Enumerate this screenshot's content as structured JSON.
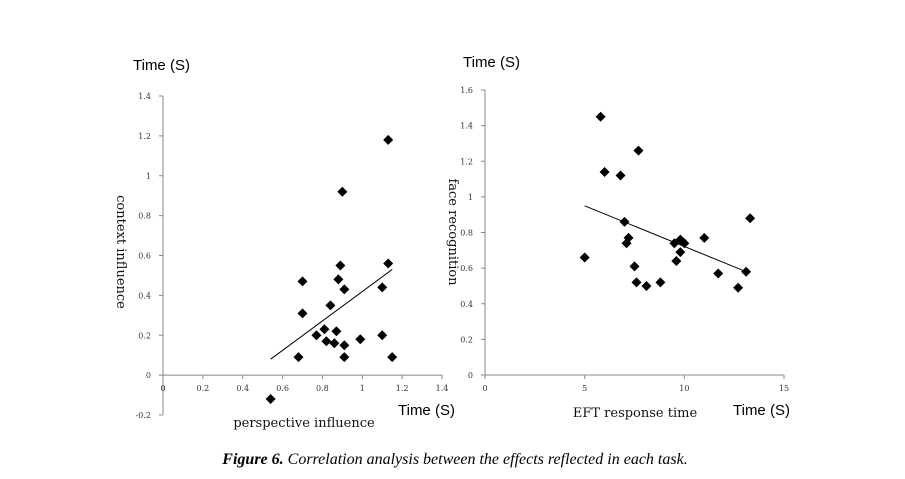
{
  "caption": {
    "bold": "Figure 6.",
    "text": " Correlation analysis between the effects reflected in each task."
  },
  "chart_data": [
    {
      "type": "scatter",
      "title": "",
      "unit_label_y": "Time (S)",
      "unit_label_x": "Time (S)",
      "xlabel": "perspective influence",
      "ylabel": "context influence",
      "xlim": [
        0,
        1.4
      ],
      "ylim": [
        -0.2,
        1.4
      ],
      "xticks": [
        "0",
        "0.2",
        "0.4",
        "0.6",
        "0.8",
        "1",
        "1.2",
        "1.4"
      ],
      "xtick_values": [
        0,
        0.2,
        0.4,
        0.6,
        0.8,
        1,
        1.2,
        1.4
      ],
      "yticks": [
        "-0.2",
        "0",
        "0.2",
        "0.4",
        "0.6",
        "0.8",
        "1",
        "1.2",
        "1.4"
      ],
      "ytick_values": [
        -0.2,
        0,
        0.2,
        0.4,
        0.6,
        0.8,
        1,
        1.2,
        1.4
      ],
      "points": [
        [
          0.54,
          -0.12
        ],
        [
          0.68,
          0.09
        ],
        [
          0.7,
          0.47
        ],
        [
          0.7,
          0.31
        ],
        [
          0.77,
          0.2
        ],
        [
          0.81,
          0.23
        ],
        [
          0.82,
          0.17
        ],
        [
          0.84,
          0.35
        ],
        [
          0.86,
          0.16
        ],
        [
          0.87,
          0.22
        ],
        [
          0.88,
          0.48
        ],
        [
          0.89,
          0.55
        ],
        [
          0.9,
          0.92
        ],
        [
          0.91,
          0.43
        ],
        [
          0.91,
          0.15
        ],
        [
          0.91,
          0.09
        ],
        [
          0.99,
          0.18
        ],
        [
          1.1,
          0.44
        ],
        [
          1.1,
          0.2
        ],
        [
          1.13,
          1.18
        ],
        [
          1.13,
          0.56
        ],
        [
          1.15,
          0.09
        ]
      ],
      "trendline": [
        [
          0.54,
          0.08
        ],
        [
          1.15,
          0.53
        ]
      ],
      "grid": false
    },
    {
      "type": "scatter",
      "title": "",
      "unit_label_y": "Time (S)",
      "unit_label_x": "Time (S)",
      "xlabel": "EFT response time",
      "ylabel": "face recognition",
      "xlim": [
        0,
        15
      ],
      "ylim": [
        0,
        1.6
      ],
      "xticks": [
        "0",
        "5",
        "10",
        "15"
      ],
      "xtick_values": [
        0,
        5,
        10,
        15
      ],
      "yticks": [
        "0",
        "0.2",
        "0.4",
        "0.6",
        "0.8",
        "1",
        "1.2",
        "1.4",
        "1.6"
      ],
      "ytick_values": [
        0,
        0.2,
        0.4,
        0.6,
        0.8,
        1,
        1.2,
        1.4,
        1.6
      ],
      "points": [
        [
          5.0,
          0.66
        ],
        [
          5.8,
          1.45
        ],
        [
          6.0,
          1.14
        ],
        [
          6.8,
          1.12
        ],
        [
          7.0,
          0.86
        ],
        [
          7.1,
          0.74
        ],
        [
          7.2,
          0.77
        ],
        [
          7.5,
          0.61
        ],
        [
          7.6,
          0.52
        ],
        [
          7.7,
          1.26
        ],
        [
          8.1,
          0.5
        ],
        [
          8.8,
          0.52
        ],
        [
          9.5,
          0.74
        ],
        [
          9.6,
          0.64
        ],
        [
          9.8,
          0.76
        ],
        [
          9.8,
          0.69
        ],
        [
          10.0,
          0.74
        ],
        [
          11.0,
          0.77
        ],
        [
          11.7,
          0.57
        ],
        [
          12.7,
          0.49
        ],
        [
          13.1,
          0.58
        ],
        [
          13.3,
          0.88
        ]
      ],
      "trendline": [
        [
          5.0,
          0.95
        ],
        [
          13.1,
          0.58
        ]
      ],
      "grid": false
    }
  ]
}
